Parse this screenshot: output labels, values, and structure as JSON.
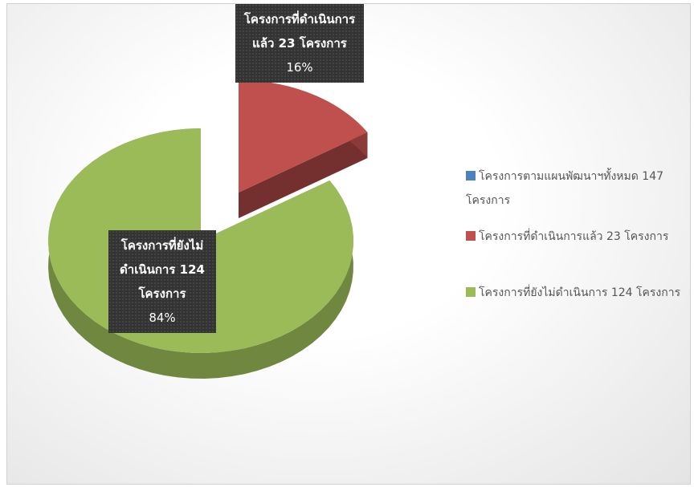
{
  "chart_data": {
    "type": "pie3d",
    "categories": [
      "โครงการตามแผนพัฒนาฯทั้งหมด 147 โครงการ",
      "โครงการที่ดำเนินการแล้ว 23 โครงการ",
      "โครงการที่ยังไม่ดำเนินการ 124 โครงการ"
    ],
    "values": [
      0,
      16,
      84
    ],
    "value_labels": [
      null,
      "16%",
      "84%"
    ],
    "colors": [
      "#4f81bd",
      "#c0504d",
      "#9bbb59"
    ],
    "legend": "right"
  }
}
